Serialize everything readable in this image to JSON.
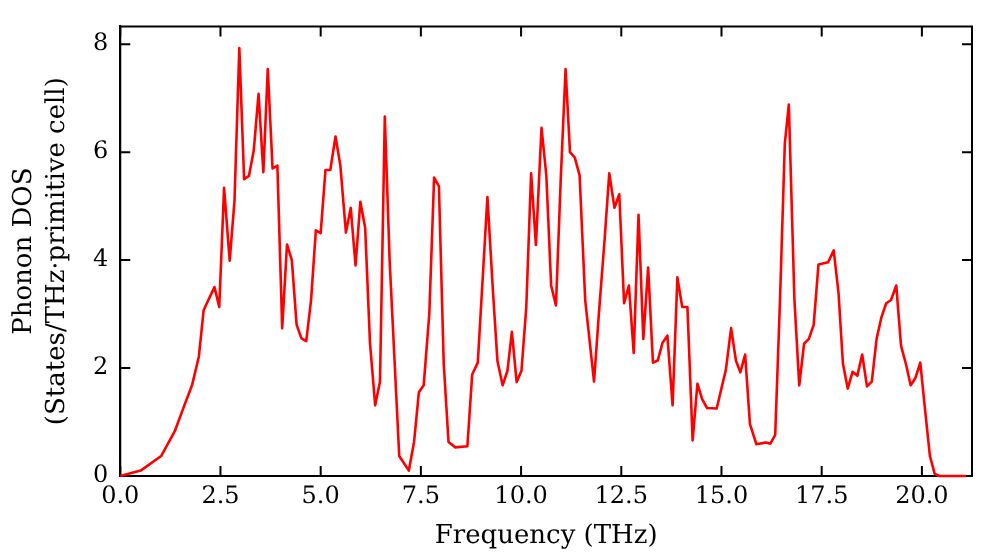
{
  "chart_data": {
    "type": "line",
    "xlabel": "Frequency (THz)",
    "ylabel": "Phonon DOS\n(States/THz·primitive cell)",
    "xlim": [
      0,
      21.25
    ],
    "ylim": [
      0,
      8.33
    ],
    "xticks": [
      {
        "value": 0,
        "label": "0.0"
      },
      2.5,
      {
        "value": 5,
        "label": "5.0"
      },
      7.5,
      {
        "value": 10,
        "label": "10.0"
      },
      12.5,
      {
        "value": 15,
        "label": "15.0"
      },
      17.5,
      {
        "value": 20,
        "label": "20.0"
      }
    ],
    "yticks": [
      0,
      2,
      4,
      6,
      8
    ],
    "grid": false,
    "legend": false,
    "marker": "none",
    "line_style": "solid",
    "series": [
      {
        "color": "#ff0000",
        "x": [
          0,
          0.51,
          1.02,
          1.36,
          1.62,
          1.79,
          1.96,
          2.08,
          2.16,
          2.35,
          2.47,
          2.59,
          2.73,
          2.85,
          2.97,
          3.09,
          3.21,
          3.33,
          3.45,
          3.57,
          3.68,
          3.8,
          3.92,
          4.04,
          4.16,
          4.28,
          4.4,
          4.52,
          4.64,
          4.76,
          4.88,
          5.0,
          5.12,
          5.24,
          5.37,
          5.49,
          5.63,
          5.75,
          5.87,
          5.99,
          6.11,
          6.23,
          6.36,
          6.48,
          6.6,
          6.72,
          6.96,
          7.2,
          7.33,
          7.45,
          7.57,
          7.71,
          7.83,
          7.95,
          8.07,
          8.19,
          8.36,
          8.66,
          8.78,
          8.92,
          9.16,
          9.3,
          9.41,
          9.54,
          9.66,
          9.77,
          9.89,
          10.01,
          10.13,
          10.25,
          10.37,
          10.51,
          10.63,
          10.75,
          10.87,
          10.99,
          11.11,
          11.22,
          11.34,
          11.46,
          11.6,
          11.82,
          11.94,
          12.08,
          12.2,
          12.33,
          12.45,
          12.57,
          12.69,
          12.81,
          12.93,
          13.05,
          13.17,
          13.29,
          13.41,
          13.53,
          13.65,
          13.78,
          13.9,
          14.02,
          14.15,
          14.28,
          14.4,
          14.52,
          14.64,
          14.88,
          15.11,
          15.24,
          15.36,
          15.47,
          15.59,
          15.71,
          15.87,
          16.1,
          16.22,
          16.34,
          16.46,
          16.58,
          16.68,
          16.82,
          16.94,
          17.06,
          17.18,
          17.3,
          17.42,
          17.66,
          17.8,
          17.92,
          18.03,
          18.15,
          18.27,
          18.39,
          18.51,
          18.63,
          18.75,
          18.87,
          18.99,
          19.11,
          19.23,
          19.36,
          19.48,
          19.6,
          19.72,
          19.84,
          19.96,
          20.08,
          20.2,
          20.32,
          20.44,
          21.1
        ],
        "values": [
          0,
          0.1,
          0.37,
          0.83,
          1.35,
          1.68,
          2.21,
          3.07,
          3.2,
          3.5,
          3.13,
          5.34,
          3.99,
          5.1,
          7.93,
          5.5,
          5.56,
          6.03,
          7.08,
          5.63,
          7.54,
          5.7,
          5.75,
          2.74,
          4.29,
          4.0,
          2.8,
          2.55,
          2.5,
          3.26,
          4.55,
          4.5,
          5.67,
          5.67,
          6.29,
          5.76,
          4.51,
          4.97,
          3.9,
          5.08,
          4.6,
          2.47,
          1.31,
          1.75,
          6.66,
          4.0,
          0.37,
          0.1,
          0.63,
          1.55,
          1.68,
          3.0,
          5.53,
          5.37,
          2.08,
          0.63,
          0.53,
          0.55,
          1.88,
          2.1,
          5.17,
          3.4,
          2.13,
          1.68,
          1.95,
          2.67,
          1.74,
          1.95,
          3.13,
          5.61,
          4.28,
          6.45,
          5.57,
          3.53,
          3.16,
          5.51,
          7.54,
          6.0,
          5.9,
          5.57,
          3.26,
          1.75,
          3.0,
          4.34,
          5.61,
          4.97,
          5.22,
          3.2,
          3.53,
          2.28,
          4.84,
          2.54,
          3.86,
          2.1,
          2.14,
          2.47,
          2.6,
          1.31,
          3.68,
          3.13,
          3.13,
          0.66,
          1.71,
          1.42,
          1.26,
          1.25,
          1.97,
          2.74,
          2.14,
          1.92,
          2.25,
          0.96,
          0.59,
          0.62,
          0.6,
          0.76,
          3.26,
          6.16,
          6.88,
          3.26,
          1.68,
          2.45,
          2.54,
          2.8,
          3.92,
          3.96,
          4.18,
          3.39,
          2.08,
          1.62,
          1.93,
          1.86,
          2.25,
          1.66,
          1.75,
          2.54,
          2.94,
          3.2,
          3.26,
          3.53,
          2.41,
          2.08,
          1.68,
          1.82,
          2.1,
          1.22,
          0.37,
          0.04,
          0,
          0
        ]
      }
    ]
  }
}
